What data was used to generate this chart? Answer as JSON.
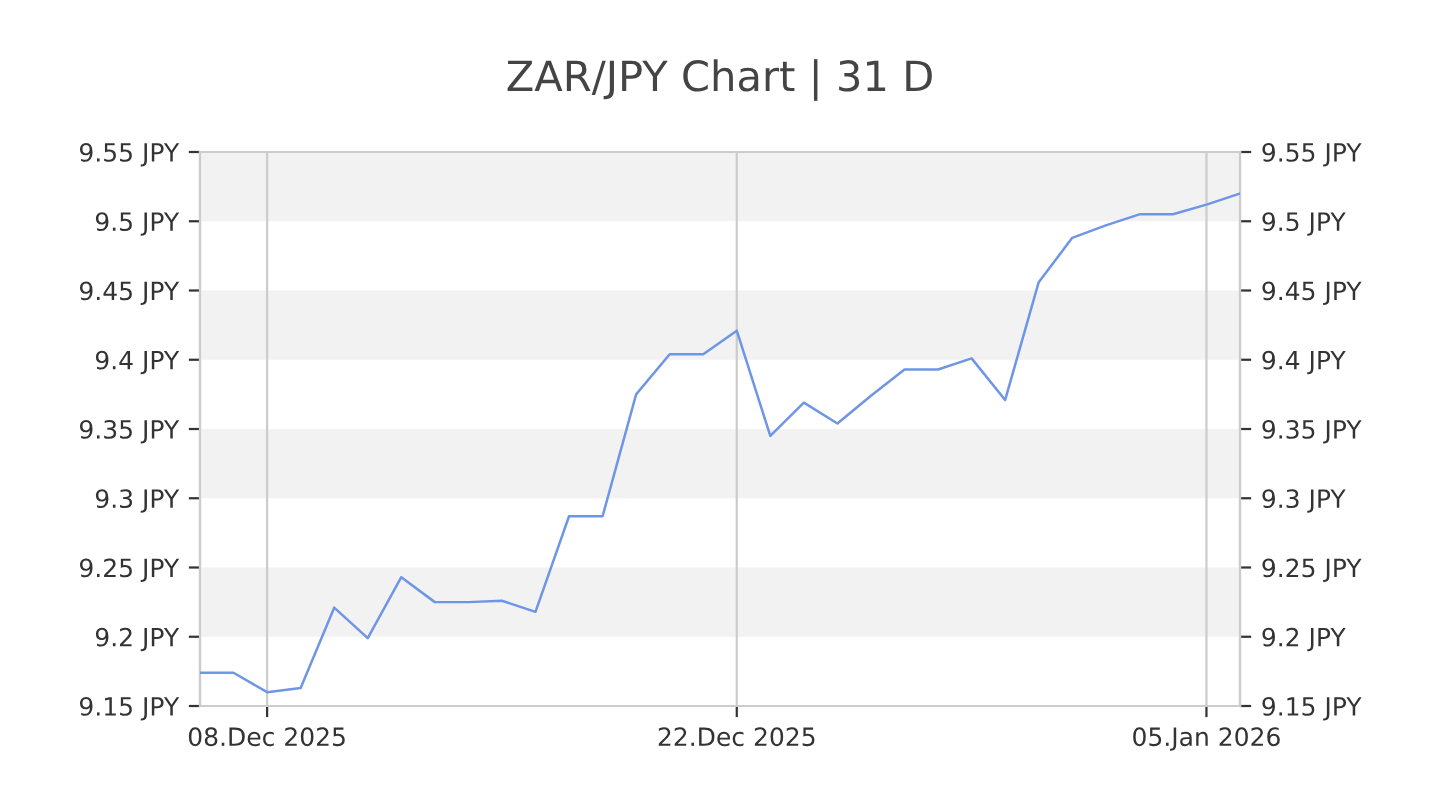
{
  "chart_data": {
    "type": "line",
    "title": "ZAR/JPY Chart | 31 D",
    "x": [
      "2025-12-06",
      "2025-12-07",
      "2025-12-08",
      "2025-12-09",
      "2025-12-10",
      "2025-12-11",
      "2025-12-12",
      "2025-12-13",
      "2025-12-14",
      "2025-12-15",
      "2025-12-16",
      "2025-12-17",
      "2025-12-18",
      "2025-12-19",
      "2025-12-20",
      "2025-12-21",
      "2025-12-22",
      "2025-12-23",
      "2025-12-24",
      "2025-12-25",
      "2025-12-26",
      "2025-12-27",
      "2025-12-28",
      "2025-12-29",
      "2025-12-30",
      "2025-12-31",
      "2026-01-01",
      "2026-01-02",
      "2026-01-03",
      "2026-01-04",
      "2026-01-05",
      "2026-01-06"
    ],
    "series": [
      {
        "color": "#6f96e6",
        "values": [
          9.174,
          9.174,
          9.16,
          9.163,
          9.221,
          9.199,
          9.243,
          9.225,
          9.225,
          9.226,
          9.218,
          9.287,
          9.287,
          9.375,
          9.404,
          9.404,
          9.421,
          9.345,
          9.369,
          9.354,
          9.374,
          9.393,
          9.393,
          9.401,
          9.371,
          9.456,
          9.488,
          9.497,
          9.505,
          9.505,
          9.512,
          9.52
        ]
      }
    ],
    "xlim": [
      "2025-12-06",
      "2026-01-06"
    ],
    "xticks": [
      {
        "value": "2025-12-08",
        "label": "08.Dec 2025"
      },
      {
        "value": "2025-12-22",
        "label": "22.Dec 2025"
      },
      {
        "value": "2026-01-05",
        "label": "05.Jan 2026"
      }
    ],
    "ylim": [
      9.15,
      9.55
    ],
    "yticks": [
      {
        "value": 9.15,
        "label": "9.15 JPY"
      },
      {
        "value": 9.2,
        "label": "9.2 JPY"
      },
      {
        "value": 9.25,
        "label": "9.25 JPY"
      },
      {
        "value": 9.3,
        "label": "9.3 JPY"
      },
      {
        "value": 9.35,
        "label": "9.35 JPY"
      },
      {
        "value": 9.4,
        "label": "9.4 JPY"
      },
      {
        "value": 9.45,
        "label": "9.45 JPY"
      },
      {
        "value": 9.5,
        "label": "9.5 JPY"
      },
      {
        "value": 9.55,
        "label": "9.55 JPY"
      }
    ],
    "y2lim": [
      9.15,
      9.55
    ],
    "y2ticks": [
      {
        "value": 9.15,
        "label": "9.15 JPY"
      },
      {
        "value": 9.2,
        "label": "9.2 JPY"
      },
      {
        "value": 9.25,
        "label": "9.25 JPY"
      },
      {
        "value": 9.3,
        "label": "9.3 JPY"
      },
      {
        "value": 9.35,
        "label": "9.35 JPY"
      },
      {
        "value": 9.4,
        "label": "9.4 JPY"
      },
      {
        "value": 9.45,
        "label": "9.45 JPY"
      },
      {
        "value": 9.5,
        "label": "9.5 JPY"
      },
      {
        "value": 9.55,
        "label": "9.55 JPY"
      }
    ],
    "bands": [
      {
        "axis": "y",
        "from": 9.2,
        "to": 9.25,
        "color": "#f2f2f2"
      },
      {
        "axis": "y",
        "from": 9.3,
        "to": 9.35,
        "color": "#f2f2f2"
      },
      {
        "axis": "y",
        "from": 9.4,
        "to": 9.45,
        "color": "#f2f2f2"
      },
      {
        "axis": "y",
        "from": 9.5,
        "to": 9.55,
        "color": "#f2f2f2"
      }
    ],
    "grid": "x",
    "legend": false,
    "marker": "none",
    "line_style": "solid"
  }
}
